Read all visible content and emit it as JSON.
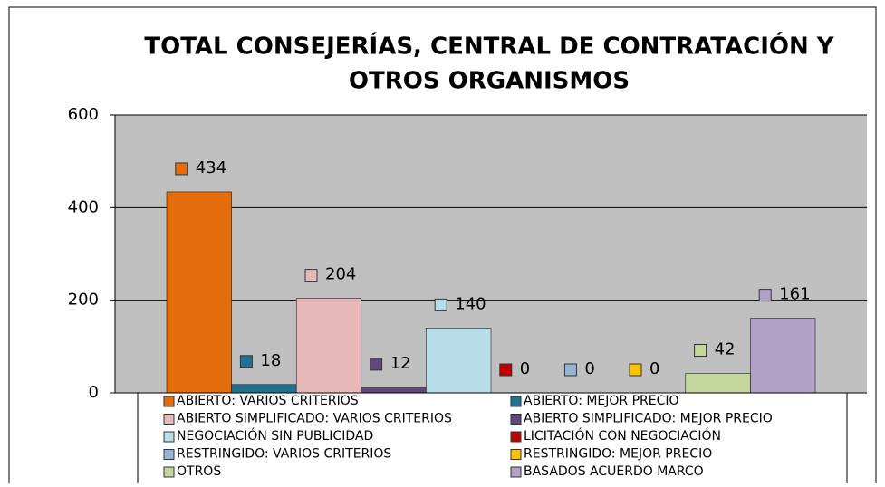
{
  "chart_data": {
    "type": "bar",
    "title": [
      "TOTAL CONSEJERÍAS, CENTRAL DE CONTRATACIÓN Y",
      "OTROS ORGANISMOS"
    ],
    "series": [
      {
        "name": "ABIERTO: VARIOS CRITERIOS",
        "color": "#e46c0a",
        "values": [
          434
        ]
      },
      {
        "name": "ABIERTO: MEJOR PRECIO",
        "color": "#1f7391",
        "values": [
          18
        ]
      },
      {
        "name": "ABIERTO SIMPLIFICADO: VARIOS CRITERIOS",
        "color": "#e6b9b8",
        "values": [
          204
        ]
      },
      {
        "name": "ABIERTO SIMPLIFICADO: MEJOR PRECIO",
        "color": "#5f497a",
        "values": [
          12
        ]
      },
      {
        "name": "NEGOCIACIÓN SIN PUBLICIDAD",
        "color": "#b7dde8",
        "values": [
          140
        ]
      },
      {
        "name": "LICITACIÓN CON NEGOCIACIÓN",
        "color": "#c00000",
        "values": [
          0
        ]
      },
      {
        "name": "RESTRINGIDO: VARIOS CRITERIOS",
        "color": "#95b3d7",
        "values": [
          0
        ]
      },
      {
        "name": "RESTRINGIDO: MEJOR PRECIO",
        "color": "#ffc000",
        "values": [
          0
        ]
      },
      {
        "name": "OTROS",
        "color": "#c3d69b",
        "values": [
          42
        ]
      },
      {
        "name": "BASADOS ACUERDO MARCO",
        "color": "#b3a2c7",
        "values": [
          161
        ]
      }
    ],
    "ylim": [
      0,
      600
    ],
    "yticks": [
      0,
      200,
      400,
      600
    ],
    "grid": true,
    "legend": "bottom"
  }
}
